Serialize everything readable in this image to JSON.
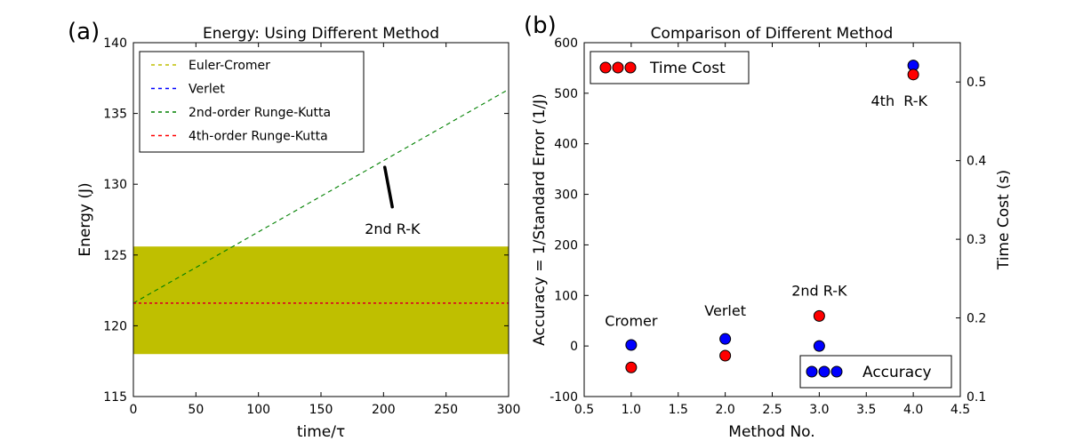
{
  "chart_data": [
    {
      "panel_label": "(a)",
      "type": "line",
      "title": "Energy: Using Different Method",
      "xlabel": "time/τ",
      "ylabel": "Energy (J)",
      "xlim": [
        0,
        300
      ],
      "ylim": [
        115,
        140
      ],
      "xticks": [
        0,
        50,
        100,
        150,
        200,
        250,
        300
      ],
      "yticks": [
        115,
        120,
        125,
        130,
        135,
        140
      ],
      "series": [
        {
          "name": "Euler-Cromer",
          "color": "#bfbf00",
          "kind": "band",
          "x": [
            0,
            300
          ],
          "y_low": 118.0,
          "y_high": 125.6
        },
        {
          "name": "Verlet",
          "color": "#0000ff",
          "kind": "dashed",
          "x": [
            0,
            300
          ],
          "y": [
            121.6,
            121.6
          ]
        },
        {
          "name": "2nd-order Runge-Kutta",
          "color": "#008000",
          "kind": "dashed",
          "x": [
            0,
            300
          ],
          "y": [
            121.6,
            136.7
          ]
        },
        {
          "name": "4th-order Runge-Kutta",
          "color": "#ff0000",
          "kind": "dashed",
          "x": [
            0,
            300
          ],
          "y": [
            121.6,
            121.6
          ]
        }
      ],
      "legend_position": "top-left",
      "annotation": {
        "text": "2nd R-K",
        "xy": [
          201,
          131.2
        ],
        "xytext": [
          207,
          128.4
        ],
        "text_at": [
          185,
          126.5
        ]
      }
    },
    {
      "panel_label": "(b)",
      "type": "scatter",
      "title": "Comparison of Different Method",
      "xlabel": "Method No.",
      "ylabel": "Accuracy = 1/Standard Error (1/J)",
      "ylabel_right": "Time Cost (s)",
      "xlim": [
        0.5,
        4.5
      ],
      "ylim": [
        -100,
        600
      ],
      "ylim_right": [
        0.1,
        0.55
      ],
      "xticks": [
        0.5,
        1.0,
        1.5,
        2.0,
        2.5,
        3.0,
        3.5,
        4.0,
        4.5
      ],
      "yticks": [
        -100,
        0,
        100,
        200,
        300,
        400,
        500,
        600
      ],
      "yticks_right": [
        0.1,
        0.2,
        0.3,
        0.4,
        0.5
      ],
      "series": [
        {
          "name": "Accuracy",
          "color": "#0000ff",
          "axis": "left",
          "x": [
            1,
            2,
            3,
            4
          ],
          "y": [
            2,
            14,
            0,
            555
          ]
        },
        {
          "name": "Time Cost",
          "color": "#ff0000",
          "axis": "right",
          "x": [
            1,
            2,
            3,
            4
          ],
          "y": [
            0.137,
            0.152,
            0.2025,
            0.5095
          ]
        }
      ],
      "labels": [
        {
          "text": "Cromer",
          "at": [
            1.0,
            40
          ]
        },
        {
          "text": "Verlet",
          "at": [
            2.0,
            60
          ]
        },
        {
          "text": "2nd R-K",
          "at": [
            3.0,
            100
          ]
        },
        {
          "text": "4th  R-K",
          "at": [
            3.85,
            475
          ]
        }
      ],
      "legends": [
        {
          "label": "Time Cost",
          "color": "#ff0000",
          "position": "top-left"
        },
        {
          "label": "Accuracy",
          "color": "#0000ff",
          "position": "bottom-right"
        }
      ]
    }
  ]
}
